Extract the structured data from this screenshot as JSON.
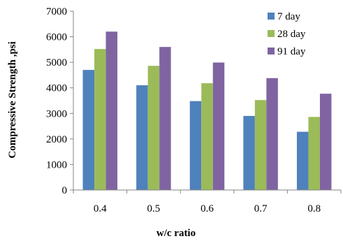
{
  "chart_data": {
    "type": "bar",
    "title": "",
    "xlabel": "w/c ratio",
    "ylabel": "Compressive  Strength ,psi",
    "categories": [
      "0.4",
      "0.5",
      "0.6",
      "0.7",
      "0.8"
    ],
    "ylim": [
      0,
      7000
    ],
    "yticks": [
      "0",
      "1000",
      "2000",
      "3000",
      "4000",
      "5000",
      "6000",
      "7000"
    ],
    "grid": false,
    "legend_position": "top-right",
    "series": [
      {
        "name": "7 day",
        "color": "#4F81BD",
        "values": [
          4700,
          4100,
          3480,
          2900,
          2280
        ]
      },
      {
        "name": "28 day",
        "color": "#9BBB59",
        "values": [
          5520,
          4860,
          4180,
          3520,
          2860
        ]
      },
      {
        "name": "91 day",
        "color": "#8064A2",
        "values": [
          6200,
          5600,
          4990,
          4380,
          3770
        ]
      }
    ]
  }
}
